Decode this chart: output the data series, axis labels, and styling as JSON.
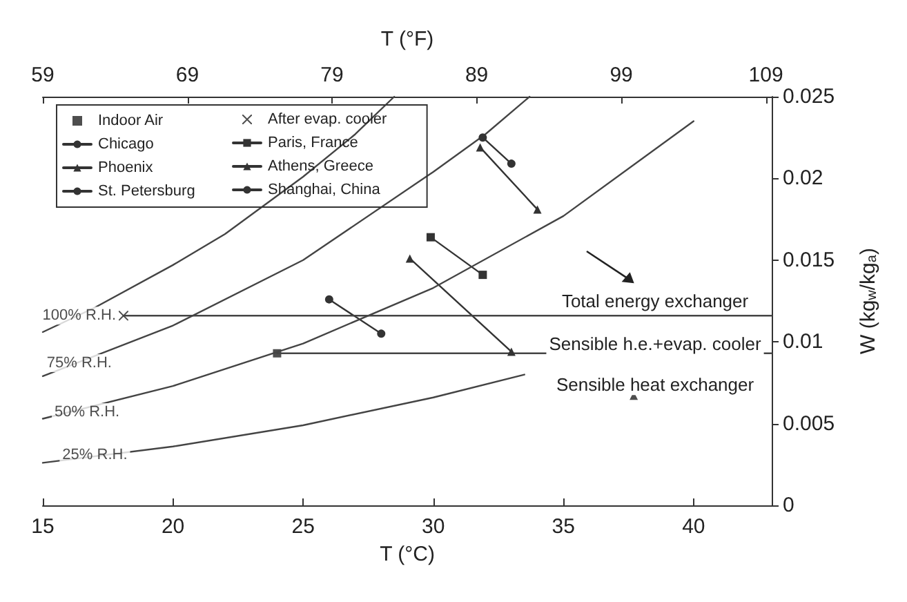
{
  "chart_data": {
    "type": "line",
    "xlabel": "T (°C)",
    "x2label": "T (°F)",
    "ylabel": "W (kg$_{w}$/kg$_{a}$)",
    "xlim": [
      15,
      43
    ],
    "xticks": [
      15,
      20,
      25,
      30,
      35,
      40
    ],
    "x2lim": [
      59,
      109.4
    ],
    "x2ticks": [
      59,
      69,
      79,
      89,
      99,
      109
    ],
    "ylim": [
      0,
      0.025
    ],
    "yticks": [
      0,
      0.005,
      0.01,
      0.015,
      0.02,
      0.025
    ],
    "grid": false,
    "legend": "top left",
    "series": [
      {
        "name": "Indoor Air",
        "type": "scatter",
        "marker": "square",
        "color": "#222222",
        "x": [
          24
        ],
        "values": [
          0.0093
        ]
      },
      {
        "name": "After evap. cooler",
        "type": "scatter",
        "marker": "cross",
        "color": "#222222",
        "x": [
          18.1
        ],
        "values": [
          0.0116
        ]
      },
      {
        "name": "Chicago",
        "marker": "circle",
        "color": "#333333"
      },
      {
        "name": "Paris, France",
        "marker": "square",
        "color": "#333333",
        "x": [
          29.9,
          31.9
        ],
        "values": [
          0.0164,
          0.0141
        ]
      },
      {
        "name": "Phoenix",
        "marker": "triangle",
        "color": "#333333",
        "x": [
          29.1,
          33
        ],
        "values": [
          0.0151,
          0.0094
        ]
      },
      {
        "name": "Athens, Greece",
        "marker": "triangle",
        "color": "#333333",
        "x": [
          31.8,
          34
        ],
        "values": [
          0.0219,
          0.0181
        ]
      },
      {
        "name": "St. Petersburg",
        "marker": "circle",
        "color": "#333333",
        "x": [
          26,
          28
        ],
        "values": [
          0.0126,
          0.0105
        ]
      },
      {
        "name": "Shanghai, China",
        "marker": "circle",
        "color": "#333333",
        "x": [
          31.9,
          33
        ],
        "values": [
          0.0225,
          0.0209
        ]
      },
      {
        "type": "scatter",
        "marker": "triangle",
        "color": "#222222",
        "x": [
          37.7
        ],
        "values": [
          0.0067
        ]
      },
      {
        "marker": "none",
        "color": "#444444",
        "x": [
          18.1,
          43
        ],
        "values": [
          0.0116,
          0.0116
        ]
      },
      {
        "marker": "none",
        "color": "#444444",
        "x": [
          24,
          43
        ],
        "values": [
          0.0093,
          0.0093
        ]
      },
      {
        "marker": "none",
        "color": "#444444",
        "x": [
          15,
          17,
          20,
          22,
          25,
          27,
          28.5
        ],
        "values": [
          0.0106,
          0.0121,
          0.0147,
          0.0166,
          0.0201,
          0.0227,
          0.025
        ]
      },
      {
        "marker": "none",
        "color": "#444444",
        "x": [
          15,
          20,
          25,
          30,
          32,
          33.7
        ],
        "values": [
          0.0079,
          0.011,
          0.015,
          0.0204,
          0.0227,
          0.025
        ]
      },
      {
        "marker": "none",
        "color": "#444444",
        "x": [
          15,
          20,
          25,
          30,
          35,
          40
        ],
        "values": [
          0.0053,
          0.0073,
          0.0099,
          0.0133,
          0.0177,
          0.0235
        ]
      },
      {
        "marker": "none",
        "color": "#444444",
        "x": [
          15,
          20,
          25,
          30,
          33.5
        ],
        "values": [
          0.0026,
          0.0036,
          0.0049,
          0.0066,
          0.008
        ]
      }
    ],
    "annotations": [
      {
        "text": "100% R.H.",
        "x": 16.4,
        "y": 0.0116
      },
      {
        "text": "75% R.H.",
        "x": 16.4,
        "y": 0.0087
      },
      {
        "text": "50% R.H.",
        "x": 16.7,
        "y": 0.0057
      },
      {
        "text": "25% R.H.",
        "x": 17,
        "y": 0.0031
      },
      "Total energy exchanger",
      "Sensible h.e.+evap. cooler",
      "Sensible heat exchanger"
    ]
  }
}
